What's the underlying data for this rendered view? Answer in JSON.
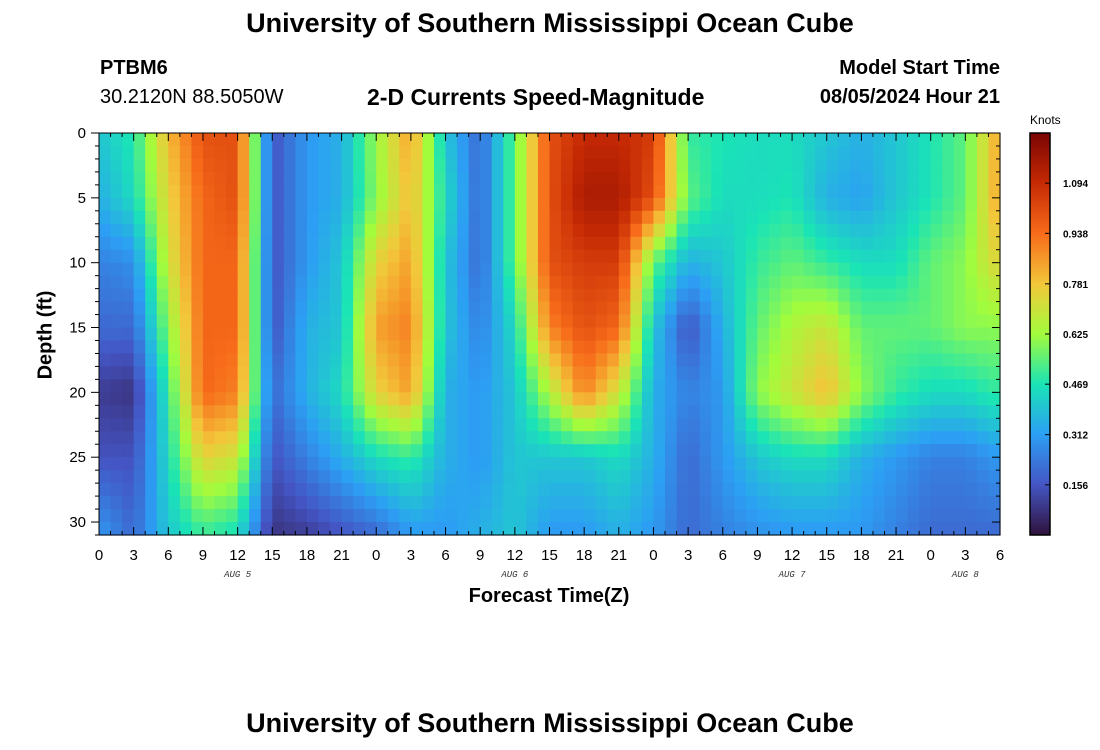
{
  "header": {
    "title": "University of Southern Mississippi Ocean Cube",
    "station": "PTBM6",
    "coordinates": "30.2120N  88.5050W",
    "subtitle": "2-D Currents Speed-Magnitude",
    "model_start_label": "Model Start Time",
    "model_start_value": "08/05/2024 Hour 21"
  },
  "footer": {
    "title": "University of Southern Mississippi Ocean Cube"
  },
  "chart_data": {
    "type": "heatmap",
    "title": "2-D Currents Speed-Magnitude",
    "xlabel": "Forecast Time(Z)",
    "ylabel": "Depth (ft)",
    "xlim": [
      0,
      78
    ],
    "ylim": [
      31,
      0
    ],
    "x_tick_values": [
      0,
      3,
      6,
      9,
      12,
      15,
      18,
      21,
      24,
      27,
      30,
      33,
      36,
      39,
      42,
      45,
      48,
      51,
      54,
      57,
      60,
      63,
      66,
      69,
      72,
      75,
      78
    ],
    "x_tick_labels": [
      "0",
      "3",
      "6",
      "9",
      "12",
      "15",
      "18",
      "21",
      "0",
      "3",
      "6",
      "9",
      "12",
      "15",
      "18",
      "21",
      "0",
      "3",
      "6",
      "9",
      "12",
      "15",
      "18",
      "21",
      "0",
      "3",
      "6"
    ],
    "date_labels": [
      {
        "text": "AUG 5",
        "at": 12
      },
      {
        "text": "AUG 6",
        "at": 36
      },
      {
        "text": "AUG 7",
        "at": 60
      },
      {
        "text": "AUG 8",
        "at": 75
      }
    ],
    "y_ticks": [
      0,
      5,
      10,
      15,
      20,
      25,
      30
    ],
    "colorbar": {
      "unit": "Knots",
      "ticks": [
        0.156,
        0.312,
        0.469,
        0.625,
        0.781,
        0.938,
        1.094
      ],
      "range": [
        0.0,
        1.25
      ]
    },
    "grid": {
      "hours": [
        0,
        3,
        6,
        9,
        12,
        15,
        18,
        21,
        24,
        27,
        30,
        33,
        36,
        39,
        42,
        45,
        48,
        51,
        54,
        57,
        60,
        63,
        66,
        69,
        72,
        75,
        78
      ],
      "depths": [
        0,
        5,
        10,
        15,
        20,
        25,
        31
      ],
      "values_knots": [
        [
          0.4,
          0.48,
          0.8,
          1.0,
          1.0,
          0.15,
          0.3,
          0.35,
          0.62,
          0.85,
          0.4,
          0.2,
          0.55,
          1.0,
          1.1,
          1.1,
          1.05,
          0.5,
          0.47,
          0.45,
          0.45,
          0.4,
          0.35,
          0.4,
          0.47,
          0.55,
          0.85
        ],
        [
          0.35,
          0.45,
          0.75,
          0.95,
          1.0,
          0.15,
          0.3,
          0.35,
          0.6,
          0.8,
          0.45,
          0.2,
          0.55,
          1.0,
          1.15,
          1.15,
          1.0,
          0.55,
          0.45,
          0.45,
          0.47,
          0.35,
          0.32,
          0.4,
          0.47,
          0.55,
          0.85
        ],
        [
          0.25,
          0.28,
          0.7,
          0.95,
          0.95,
          0.15,
          0.3,
          0.4,
          0.75,
          0.85,
          0.4,
          0.2,
          0.55,
          1.0,
          1.05,
          1.05,
          0.55,
          0.35,
          0.4,
          0.5,
          0.55,
          0.5,
          0.45,
          0.45,
          0.55,
          0.6,
          0.75
        ],
        [
          0.2,
          0.2,
          0.6,
          0.95,
          0.95,
          0.15,
          0.35,
          0.4,
          0.85,
          0.9,
          0.4,
          0.25,
          0.45,
          0.9,
          1.0,
          0.95,
          0.4,
          0.15,
          0.35,
          0.55,
          0.65,
          0.7,
          0.55,
          0.55,
          0.55,
          0.6,
          0.6
        ],
        [
          0.1,
          0.08,
          0.5,
          0.95,
          0.9,
          0.2,
          0.35,
          0.45,
          0.75,
          0.85,
          0.35,
          0.3,
          0.4,
          0.65,
          0.9,
          0.7,
          0.35,
          0.25,
          0.3,
          0.6,
          0.7,
          0.8,
          0.6,
          0.5,
          0.45,
          0.45,
          0.5
        ],
        [
          0.15,
          0.15,
          0.45,
          0.75,
          0.7,
          0.15,
          0.25,
          0.35,
          0.45,
          0.5,
          0.35,
          0.3,
          0.4,
          0.4,
          0.4,
          0.45,
          0.35,
          0.2,
          0.3,
          0.4,
          0.45,
          0.45,
          0.35,
          0.3,
          0.25,
          0.25,
          0.3
        ],
        [
          0.3,
          0.2,
          0.4,
          0.5,
          0.45,
          0.08,
          0.1,
          0.15,
          0.2,
          0.3,
          0.3,
          0.35,
          0.4,
          0.3,
          0.3,
          0.35,
          0.3,
          0.2,
          0.25,
          0.28,
          0.3,
          0.3,
          0.3,
          0.25,
          0.2,
          0.2,
          0.2
        ]
      ]
    }
  }
}
